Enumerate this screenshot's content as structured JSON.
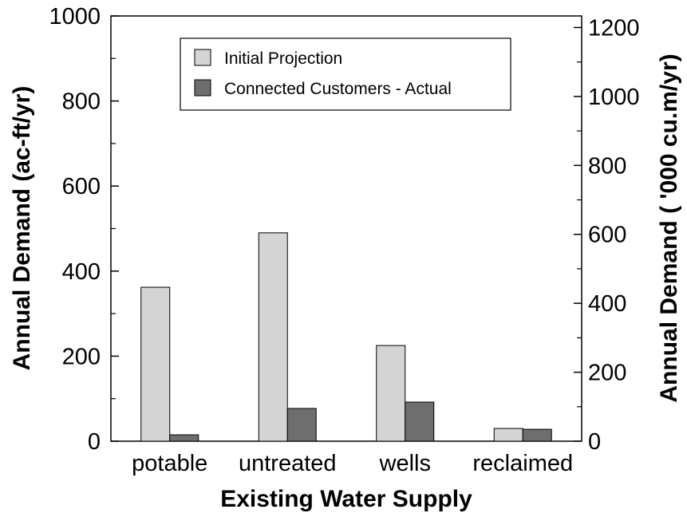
{
  "chart_data": {
    "type": "bar",
    "title": "",
    "xlabel": "Existing Water Supply",
    "ylabel": "Annual Demand (ac-ft/yr)",
    "y2label": "Annual Demand ( '000 cu.m/yr)",
    "categories": [
      "potable",
      "untreated",
      "wells",
      "reclaimed"
    ],
    "series": [
      {
        "name": "Initial Projection",
        "values": [
          362,
          490,
          225,
          30
        ],
        "color": "#d4d4d4"
      },
      {
        "name": "Connected Customers - Actual",
        "values": [
          15,
          77,
          92,
          28
        ],
        "color": "#6e6e6e"
      }
    ],
    "ylim": [
      0,
      1000
    ],
    "yticks": [
      0,
      200,
      400,
      600,
      800,
      1000
    ],
    "yticklabels": [
      "0",
      "200",
      "400",
      "600",
      "800",
      "1000"
    ],
    "y2lim": [
      0,
      1233.5
    ],
    "y2ticks": [
      0,
      200,
      400,
      600,
      800,
      1000,
      1200
    ],
    "y2ticklabels": [
      "0",
      "200",
      "400",
      "600",
      "800",
      "1000",
      "1200"
    ],
    "grid": false,
    "legend_position": "top-center"
  }
}
